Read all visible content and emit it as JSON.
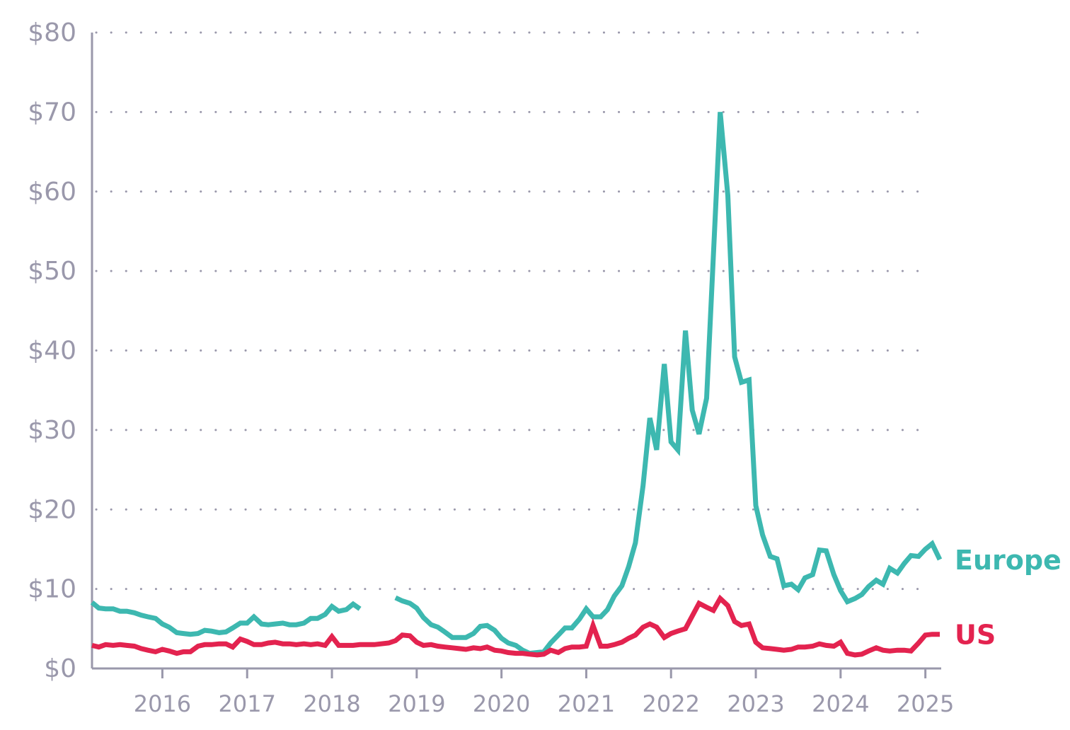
{
  "chart_data": {
    "type": "line",
    "title": "",
    "xlabel": "",
    "ylabel": "",
    "ylim": [
      0,
      80
    ],
    "xlim": [
      2015.17,
      2025.17
    ],
    "y_ticks": [
      "$0",
      "$10",
      "$20",
      "$30",
      "$40",
      "$50",
      "$60",
      "$70",
      "$80"
    ],
    "y_tick_values": [
      0,
      10,
      20,
      30,
      40,
      50,
      60,
      70,
      80
    ],
    "x_ticks": [
      "2016",
      "2017",
      "2018",
      "2019",
      "2020",
      "2021",
      "2022",
      "2023",
      "2024",
      "2025"
    ],
    "x_tick_values": [
      2016,
      2017,
      2018,
      2019,
      2020,
      2021,
      2022,
      2023,
      2024,
      2025
    ],
    "grid": "horizontal dotted",
    "legend": "inline labels at line ends",
    "series": [
      {
        "name": "Europe",
        "color": "#3db8b0",
        "points": [
          [
            2015.17,
            8.3
          ],
          [
            2015.25,
            7.6
          ],
          [
            2015.33,
            7.5
          ],
          [
            2015.42,
            7.5
          ],
          [
            2015.5,
            7.2
          ],
          [
            2015.58,
            7.2
          ],
          [
            2015.67,
            7.0
          ],
          [
            2015.75,
            6.7
          ],
          [
            2015.83,
            6.5
          ],
          [
            2015.92,
            6.3
          ],
          [
            2016.0,
            5.6
          ],
          [
            2016.08,
            5.2
          ],
          [
            2016.17,
            4.5
          ],
          [
            2016.25,
            4.4
          ],
          [
            2016.33,
            4.3
          ],
          [
            2016.42,
            4.4
          ],
          [
            2016.5,
            4.8
          ],
          [
            2016.58,
            4.7
          ],
          [
            2016.67,
            4.5
          ],
          [
            2016.75,
            4.6
          ],
          [
            2016.83,
            5.1
          ],
          [
            2016.92,
            5.7
          ],
          [
            2017.0,
            5.7
          ],
          [
            2017.08,
            6.5
          ],
          [
            2017.17,
            5.6
          ],
          [
            2017.25,
            5.5
          ],
          [
            2017.33,
            5.6
          ],
          [
            2017.42,
            5.7
          ],
          [
            2017.5,
            5.5
          ],
          [
            2017.58,
            5.5
          ],
          [
            2017.67,
            5.7
          ],
          [
            2017.75,
            6.3
          ],
          [
            2017.83,
            6.3
          ],
          [
            2017.92,
            6.8
          ],
          [
            2018.0,
            7.8
          ],
          [
            2018.08,
            7.2
          ],
          [
            2018.17,
            7.4
          ],
          [
            2018.25,
            8.1
          ],
          [
            2018.33,
            7.5
          ],
          null,
          [
            2018.75,
            8.9
          ],
          [
            2018.83,
            8.5
          ],
          [
            2018.92,
            8.2
          ],
          [
            2019.0,
            7.6
          ],
          [
            2019.08,
            6.4
          ],
          [
            2019.17,
            5.5
          ],
          [
            2019.25,
            5.2
          ],
          [
            2019.33,
            4.6
          ],
          [
            2019.42,
            3.9
          ],
          [
            2019.5,
            3.9
          ],
          [
            2019.58,
            3.9
          ],
          [
            2019.67,
            4.4
          ],
          [
            2019.75,
            5.3
          ],
          [
            2019.83,
            5.4
          ],
          [
            2019.92,
            4.8
          ],
          [
            2020.0,
            3.8
          ],
          [
            2020.08,
            3.2
          ],
          [
            2020.17,
            2.9
          ],
          [
            2020.25,
            2.3
          ],
          [
            2020.33,
            1.9
          ],
          [
            2020.42,
            2.0
          ],
          [
            2020.5,
            2.1
          ],
          [
            2020.58,
            3.2
          ],
          [
            2020.67,
            4.2
          ],
          [
            2020.75,
            5.1
          ],
          [
            2020.83,
            5.1
          ],
          [
            2020.92,
            6.2
          ],
          [
            2021.0,
            7.5
          ],
          [
            2021.08,
            6.5
          ],
          [
            2021.17,
            6.5
          ],
          [
            2021.25,
            7.4
          ],
          [
            2021.33,
            9.1
          ],
          [
            2021.42,
            10.4
          ],
          [
            2021.5,
            12.8
          ],
          [
            2021.58,
            15.8
          ],
          [
            2021.67,
            23.0
          ],
          [
            2021.75,
            31.5
          ],
          [
            2021.83,
            27.5
          ],
          [
            2021.92,
            38.3
          ],
          [
            2022.0,
            28.5
          ],
          [
            2022.08,
            27.5
          ],
          [
            2022.17,
            42.5
          ],
          [
            2022.25,
            32.5
          ],
          [
            2022.33,
            29.5
          ],
          [
            2022.42,
            34.0
          ],
          [
            2022.5,
            52.0
          ],
          [
            2022.58,
            70.0
          ],
          [
            2022.67,
            59.5
          ],
          [
            2022.75,
            39.2
          ],
          [
            2022.83,
            36.0
          ],
          [
            2022.92,
            36.3
          ],
          [
            2023.0,
            20.5
          ],
          [
            2023.08,
            16.8
          ],
          [
            2023.17,
            14.1
          ],
          [
            2023.25,
            13.8
          ],
          [
            2023.33,
            10.4
          ],
          [
            2023.42,
            10.6
          ],
          [
            2023.5,
            9.9
          ],
          [
            2023.58,
            11.4
          ],
          [
            2023.67,
            11.8
          ],
          [
            2023.75,
            14.9
          ],
          [
            2023.83,
            14.8
          ],
          [
            2023.92,
            11.8
          ],
          [
            2024.0,
            9.8
          ],
          [
            2024.08,
            8.4
          ],
          [
            2024.17,
            8.8
          ],
          [
            2024.25,
            9.3
          ],
          [
            2024.33,
            10.3
          ],
          [
            2024.42,
            11.1
          ],
          [
            2024.5,
            10.6
          ],
          [
            2024.58,
            12.6
          ],
          [
            2024.67,
            12.0
          ],
          [
            2024.75,
            13.2
          ],
          [
            2024.83,
            14.2
          ],
          [
            2024.92,
            14.1
          ],
          [
            2025.0,
            15.0
          ],
          [
            2025.08,
            15.7
          ],
          [
            2025.17,
            13.7
          ]
        ]
      },
      {
        "name": "US",
        "color": "#e3234f",
        "points": [
          [
            2015.17,
            2.9
          ],
          [
            2015.25,
            2.7
          ],
          [
            2015.33,
            3.0
          ],
          [
            2015.42,
            2.9
          ],
          [
            2015.5,
            3.0
          ],
          [
            2015.58,
            2.9
          ],
          [
            2015.67,
            2.8
          ],
          [
            2015.75,
            2.5
          ],
          [
            2015.83,
            2.3
          ],
          [
            2015.92,
            2.1
          ],
          [
            2016.0,
            2.4
          ],
          [
            2016.08,
            2.2
          ],
          [
            2016.17,
            1.9
          ],
          [
            2016.25,
            2.1
          ],
          [
            2016.33,
            2.1
          ],
          [
            2016.42,
            2.8
          ],
          [
            2016.5,
            3.0
          ],
          [
            2016.58,
            3.0
          ],
          [
            2016.67,
            3.1
          ],
          [
            2016.75,
            3.1
          ],
          [
            2016.83,
            2.7
          ],
          [
            2016.92,
            3.7
          ],
          [
            2017.0,
            3.4
          ],
          [
            2017.08,
            3.0
          ],
          [
            2017.17,
            3.0
          ],
          [
            2017.25,
            3.2
          ],
          [
            2017.33,
            3.3
          ],
          [
            2017.42,
            3.1
          ],
          [
            2017.5,
            3.1
          ],
          [
            2017.58,
            3.0
          ],
          [
            2017.67,
            3.1
          ],
          [
            2017.75,
            3.0
          ],
          [
            2017.83,
            3.1
          ],
          [
            2017.92,
            2.9
          ],
          [
            2018.0,
            4.0
          ],
          [
            2018.08,
            2.9
          ],
          [
            2018.17,
            2.9
          ],
          [
            2018.25,
            2.9
          ],
          [
            2018.33,
            3.0
          ],
          [
            2018.42,
            3.0
          ],
          [
            2018.5,
            3.0
          ],
          [
            2018.58,
            3.1
          ],
          [
            2018.67,
            3.2
          ],
          [
            2018.75,
            3.5
          ],
          [
            2018.83,
            4.2
          ],
          [
            2018.92,
            4.1
          ],
          [
            2019.0,
            3.3
          ],
          [
            2019.08,
            2.9
          ],
          [
            2019.17,
            3.0
          ],
          [
            2019.25,
            2.8
          ],
          [
            2019.33,
            2.7
          ],
          [
            2019.42,
            2.6
          ],
          [
            2019.5,
            2.5
          ],
          [
            2019.58,
            2.4
          ],
          [
            2019.67,
            2.6
          ],
          [
            2019.75,
            2.5
          ],
          [
            2019.83,
            2.7
          ],
          [
            2019.92,
            2.3
          ],
          [
            2020.0,
            2.2
          ],
          [
            2020.08,
            2.0
          ],
          [
            2020.17,
            1.9
          ],
          [
            2020.25,
            1.9
          ],
          [
            2020.33,
            1.8
          ],
          [
            2020.42,
            1.7
          ],
          [
            2020.5,
            1.8
          ],
          [
            2020.58,
            2.3
          ],
          [
            2020.67,
            2.0
          ],
          [
            2020.75,
            2.5
          ],
          [
            2020.83,
            2.7
          ],
          [
            2020.92,
            2.7
          ],
          [
            2021.0,
            2.8
          ],
          [
            2021.08,
            5.4
          ],
          [
            2021.17,
            2.8
          ],
          [
            2021.25,
            2.8
          ],
          [
            2021.33,
            3.0
          ],
          [
            2021.42,
            3.3
          ],
          [
            2021.5,
            3.8
          ],
          [
            2021.58,
            4.2
          ],
          [
            2021.67,
            5.2
          ],
          [
            2021.75,
            5.6
          ],
          [
            2021.83,
            5.2
          ],
          [
            2021.92,
            3.9
          ],
          [
            2022.0,
            4.4
          ],
          [
            2022.08,
            4.7
          ],
          [
            2022.17,
            5.0
          ],
          [
            2022.25,
            6.6
          ],
          [
            2022.33,
            8.2
          ],
          [
            2022.42,
            7.7
          ],
          [
            2022.5,
            7.3
          ],
          [
            2022.58,
            8.8
          ],
          [
            2022.67,
            7.9
          ],
          [
            2022.75,
            5.9
          ],
          [
            2022.83,
            5.4
          ],
          [
            2022.92,
            5.6
          ],
          [
            2023.0,
            3.3
          ],
          [
            2023.08,
            2.6
          ],
          [
            2023.17,
            2.5
          ],
          [
            2023.25,
            2.4
          ],
          [
            2023.33,
            2.3
          ],
          [
            2023.42,
            2.4
          ],
          [
            2023.5,
            2.7
          ],
          [
            2023.58,
            2.7
          ],
          [
            2023.67,
            2.8
          ],
          [
            2023.75,
            3.1
          ],
          [
            2023.83,
            2.9
          ],
          [
            2023.92,
            2.8
          ],
          [
            2024.0,
            3.3
          ],
          [
            2024.08,
            1.9
          ],
          [
            2024.17,
            1.7
          ],
          [
            2024.25,
            1.8
          ],
          [
            2024.33,
            2.2
          ],
          [
            2024.42,
            2.6
          ],
          [
            2024.5,
            2.3
          ],
          [
            2024.58,
            2.2
          ],
          [
            2024.67,
            2.3
          ],
          [
            2024.75,
            2.3
          ],
          [
            2024.83,
            2.2
          ],
          [
            2024.92,
            3.2
          ],
          [
            2025.0,
            4.2
          ],
          [
            2025.08,
            4.3
          ],
          [
            2025.17,
            4.3
          ]
        ]
      }
    ]
  }
}
